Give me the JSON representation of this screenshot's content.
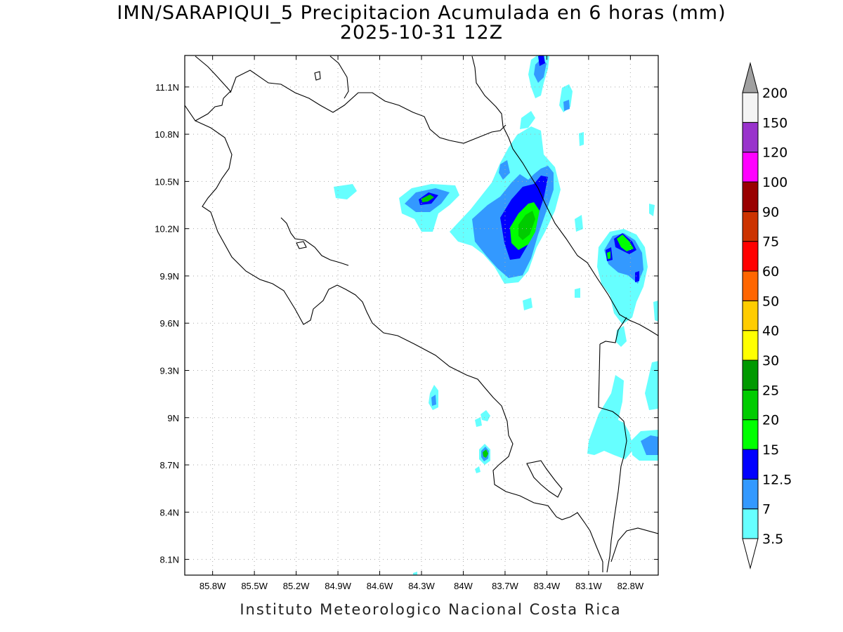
{
  "title": {
    "line1": "IMN/SARAPIQUI_5 Precipitacion Acumulada en 6 horas (mm)",
    "line2": "2025-10-31 12Z"
  },
  "footer": "Instituto Meteorologico Nacional Costa Rica",
  "map": {
    "lon_range": [
      -86.0,
      -82.6
    ],
    "lat_range": [
      8.0,
      11.3
    ],
    "lon_ticks": [
      {
        "value": -85.8,
        "label": "85.8W"
      },
      {
        "value": -85.5,
        "label": "85.5W"
      },
      {
        "value": -85.2,
        "label": "85.2W"
      },
      {
        "value": -84.9,
        "label": "84.9W"
      },
      {
        "value": -84.6,
        "label": "84.6W"
      },
      {
        "value": -84.3,
        "label": "84.3W"
      },
      {
        "value": -84.0,
        "label": "84W"
      },
      {
        "value": -83.7,
        "label": "83.7W"
      },
      {
        "value": -83.4,
        "label": "83.4W"
      },
      {
        "value": -83.1,
        "label": "83.1W"
      },
      {
        "value": -82.8,
        "label": "82.8W"
      }
    ],
    "lat_ticks": [
      {
        "value": 8.1,
        "label": "8.1N"
      },
      {
        "value": 8.4,
        "label": "8.4N"
      },
      {
        "value": 8.7,
        "label": "8.7N"
      },
      {
        "value": 9.0,
        "label": "9N"
      },
      {
        "value": 9.3,
        "label": "9.3N"
      },
      {
        "value": 9.6,
        "label": "9.6N"
      },
      {
        "value": 9.9,
        "label": "9.9N"
      },
      {
        "value": 10.2,
        "label": "10.2N"
      },
      {
        "value": 10.5,
        "label": "10.5N"
      },
      {
        "value": 10.8,
        "label": "10.8N"
      },
      {
        "value": 11.1,
        "label": "11.1N"
      }
    ],
    "grid": "dotted"
  },
  "colorbar": {
    "units": "mm",
    "labels": [
      "3.5",
      "7",
      "12.5",
      "15",
      "20",
      "25",
      "30",
      "40",
      "50",
      "60",
      "75",
      "90",
      "100",
      "120",
      "150",
      "200"
    ],
    "colors": [
      "#66ffff",
      "#3399ff",
      "#0000ff",
      "#00ff00",
      "#00cc00",
      "#009900",
      "#ffff00",
      "#ffcc00",
      "#ff6600",
      "#ff0000",
      "#cc3300",
      "#990000",
      "#ff00ff",
      "#9933cc",
      "#f4f4f4"
    ],
    "top_arrow_color": "#a0a0a0",
    "bottom_arrow_color": "#ffffff"
  }
}
